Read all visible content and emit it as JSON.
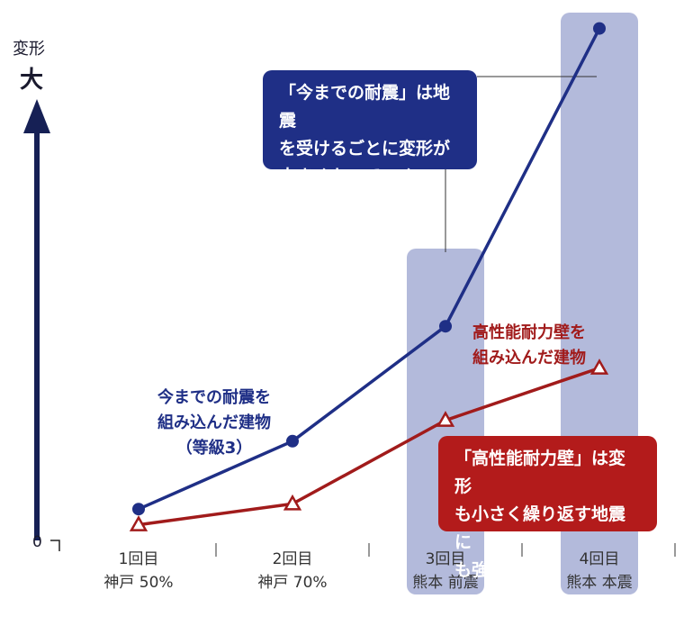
{
  "y_axis": {
    "title": "変形",
    "top_label": "大",
    "zero_label": "0"
  },
  "chart_data": {
    "type": "line",
    "categories": [
      {
        "line1": "1回目",
        "line2": "神戸 50%"
      },
      {
        "line1": "2回目",
        "line2": "神戸 70%"
      },
      {
        "line1": "3回目",
        "line2": "熊本 前震"
      },
      {
        "line1": "4回目",
        "line2": "熊本 本震"
      }
    ],
    "highlighted_categories": [
      2,
      3
    ],
    "ylim": [
      0,
      10
    ],
    "series": [
      {
        "key": "conventional",
        "color": "#1f2f86",
        "marker": "circle",
        "values": [
          0.6,
          1.9,
          4.1,
          9.8
        ]
      },
      {
        "key": "high_performance",
        "color": "#a11b1b",
        "marker": "triangle",
        "values": [
          0.3,
          0.7,
          2.3,
          3.3
        ]
      }
    ],
    "annotations": {
      "conventional_label": [
        "今までの耐震を",
        "組み込んだ建物",
        "（等級3）"
      ],
      "high_performance_label": [
        "高性能耐力壁を",
        "組み込んだ建物"
      ],
      "conventional_callout": [
        "「今までの耐震」は地震",
        "を受けるごとに変形が",
        "大きくなっていく"
      ],
      "high_performance_callout": [
        "「高性能耐力壁」は変形",
        "も小さく繰り返す地震に",
        "も強い"
      ]
    }
  },
  "colors": {
    "axis": "#162055",
    "highlight": "#b3badb",
    "callout_blue": "#1f2f86",
    "callout_red": "#b31b1b"
  }
}
